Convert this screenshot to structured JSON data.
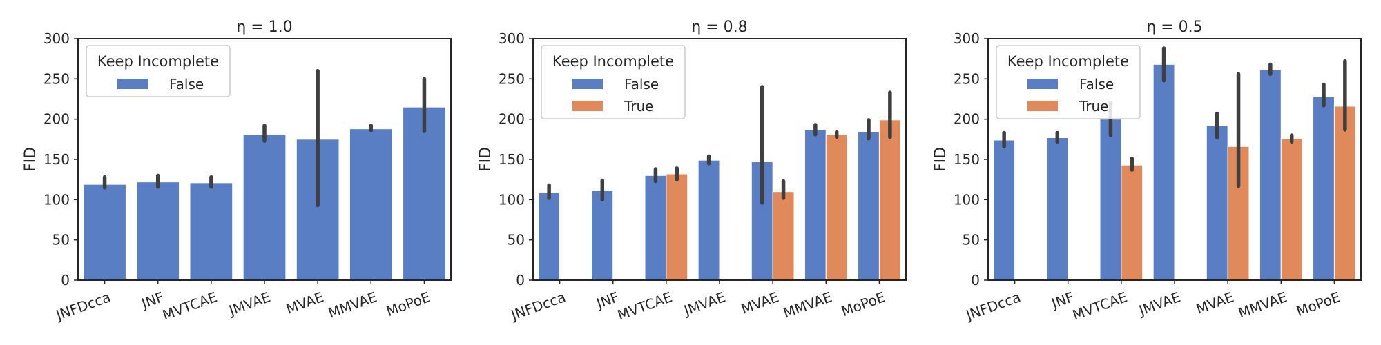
{
  "figure": {
    "legend_title": "Keep Incomplete",
    "y_label": "FID",
    "colors": {
      "False": "#5a7ec4",
      "True": "#e08a5c",
      "error_bar": "#3f3f3f",
      "axes": "#262626"
    }
  },
  "chart_data": [
    {
      "type": "bar",
      "title": "η = 1.0",
      "xlabel": "",
      "ylabel": "FID",
      "ylim": [
        0,
        300
      ],
      "yticks": [
        0,
        50,
        100,
        150,
        200,
        250,
        300
      ],
      "grid": false,
      "legend": {
        "title": "Keep Incomplete",
        "placement": "top-left",
        "entries": [
          "False"
        ]
      },
      "categories": [
        "JNFDcca",
        "JNF",
        "MVTCAE",
        "JMVAE",
        "MVAE",
        "MMVAE",
        "MoPoE"
      ],
      "series": [
        {
          "name": "False",
          "color": "#5a7ec4",
          "values": [
            119,
            122,
            121,
            181,
            175,
            188,
            215
          ],
          "error_low": [
            115,
            116,
            116,
            173,
            93,
            186,
            185
          ],
          "error_high": [
            128,
            130,
            128,
            192,
            260,
            192,
            250
          ]
        }
      ]
    },
    {
      "type": "bar",
      "title": "η = 0.8",
      "xlabel": "",
      "ylabel": "FID",
      "ylim": [
        0,
        300
      ],
      "yticks": [
        0,
        50,
        100,
        150,
        200,
        250,
        300
      ],
      "grid": false,
      "legend": {
        "title": "Keep Incomplete",
        "placement": "top-left",
        "entries": [
          "False",
          "True"
        ]
      },
      "categories": [
        "JNFDcca",
        "JNF",
        "MVTCAE",
        "JMVAE",
        "MVAE",
        "MMVAE",
        "MoPoE"
      ],
      "series": [
        {
          "name": "False",
          "color": "#5a7ec4",
          "values": [
            109,
            111,
            130,
            149,
            147,
            187,
            184
          ],
          "error_low": [
            102,
            100,
            123,
            145,
            96,
            181,
            176
          ],
          "error_high": [
            118,
            124,
            138,
            154,
            240,
            193,
            199
          ]
        },
        {
          "name": "True",
          "color": "#e08a5c",
          "values": [
            null,
            null,
            132,
            null,
            110,
            181,
            199
          ],
          "error_low": [
            null,
            null,
            125,
            null,
            102,
            178,
            178
          ],
          "error_high": [
            null,
            null,
            139,
            null,
            123,
            184,
            233
          ]
        }
      ]
    },
    {
      "type": "bar",
      "title": "η = 0.5",
      "xlabel": "",
      "ylabel": "FID",
      "ylim": [
        0,
        300
      ],
      "yticks": [
        0,
        50,
        100,
        150,
        200,
        250,
        300
      ],
      "grid": false,
      "legend": {
        "title": "Keep Incomplete",
        "placement": "top-left",
        "entries": [
          "False",
          "True"
        ]
      },
      "categories": [
        "JNFDcca",
        "JNF",
        "MVTCAE",
        "JMVAE",
        "MVAE",
        "MMVAE",
        "MoPoE"
      ],
      "series": [
        {
          "name": "False",
          "color": "#5a7ec4",
          "values": [
            174,
            177,
            200,
            268,
            192,
            261,
            228
          ],
          "error_low": [
            166,
            172,
            180,
            248,
            177,
            256,
            217
          ],
          "error_high": [
            183,
            183,
            220,
            288,
            207,
            268,
            243
          ]
        },
        {
          "name": "True",
          "color": "#e08a5c",
          "values": [
            null,
            null,
            143,
            null,
            166,
            176,
            216
          ],
          "error_low": [
            null,
            null,
            137,
            null,
            117,
            172,
            187
          ],
          "error_high": [
            null,
            null,
            151,
            null,
            256,
            180,
            272
          ]
        }
      ]
    }
  ]
}
